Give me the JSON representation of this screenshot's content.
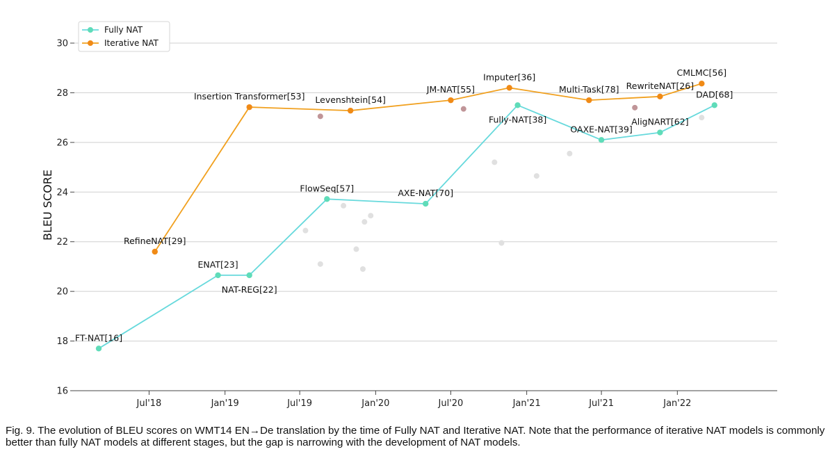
{
  "chart_data": {
    "type": "line",
    "xlabel": "",
    "ylabel": "BLEU SCORE",
    "ylim": [
      16,
      30.5
    ],
    "xlim": [
      "2018-01-01",
      "2022-08-31"
    ],
    "y_ticks": [
      16,
      18,
      20,
      22,
      24,
      26,
      28,
      30
    ],
    "x_ticks": [
      {
        "date": "2018-07-01",
        "label": "Jul'18"
      },
      {
        "date": "2019-01-01",
        "label": "Jan'19"
      },
      {
        "date": "2019-07-01",
        "label": "Jul'19"
      },
      {
        "date": "2020-01-01",
        "label": "Jan'20"
      },
      {
        "date": "2020-07-01",
        "label": "Jul'20"
      },
      {
        "date": "2021-01-01",
        "label": "Jan'21"
      },
      {
        "date": "2021-07-01",
        "label": "Jul'21"
      },
      {
        "date": "2022-01-01",
        "label": "Jan'22"
      }
    ],
    "grid": "horizontal",
    "legend": {
      "position": "top-left"
    },
    "series": [
      {
        "name": "Fully NAT",
        "color": "#66d9dc",
        "marker_color": "#5fdcb9",
        "points": [
          {
            "x": "2018-03-01",
            "y": 17.7,
            "label": "FT-NAT[16]",
            "label_pos": "above"
          },
          {
            "x": "2018-12-15",
            "y": 20.65,
            "label": "ENAT[23]",
            "label_pos": "above"
          },
          {
            "x": "2019-03-01",
            "y": 20.65,
            "label": "NAT-REG[22]",
            "label_pos": "below"
          },
          {
            "x": "2019-09-05",
            "y": 23.72,
            "label": "FlowSeq[57]",
            "label_pos": "above"
          },
          {
            "x": "2020-05-01",
            "y": 23.53,
            "label": "AXE-NAT[70]",
            "label_pos": "above"
          },
          {
            "x": "2020-12-10",
            "y": 27.5,
            "label": "Fully-NAT[38]",
            "label_pos": "below"
          },
          {
            "x": "2021-07-01",
            "y": 26.1,
            "label": "OAXE-NAT[39]",
            "label_pos": "above"
          },
          {
            "x": "2021-11-20",
            "y": 26.4,
            "label": "AligNART[62]",
            "label_pos": "above"
          },
          {
            "x": "2022-04-01",
            "y": 27.5,
            "label": "DAD[68]",
            "label_pos": "above"
          }
        ]
      },
      {
        "name": "Iterative NAT",
        "color": "#f1a01e",
        "marker_color": "#f08a16",
        "points": [
          {
            "x": "2018-07-15",
            "y": 21.6,
            "label": "RefineNAT[29]",
            "label_pos": "above"
          },
          {
            "x": "2019-03-01",
            "y": 27.42,
            "label": "Insertion Transformer[53]",
            "label_pos": "above"
          },
          {
            "x": "2019-11-01",
            "y": 27.28,
            "label": "Levenshtein[54]",
            "label_pos": "above"
          },
          {
            "x": "2020-07-01",
            "y": 27.7,
            "label": "JM-NAT[55]",
            "label_pos": "above"
          },
          {
            "x": "2020-11-20",
            "y": 28.2,
            "label": "Imputer[36]",
            "label_pos": "above"
          },
          {
            "x": "2021-06-01",
            "y": 27.7,
            "label": "Multi-Task[78]",
            "label_pos": "above"
          },
          {
            "x": "2021-11-20",
            "y": 27.85,
            "label": "RewriteNAT[26]",
            "label_pos": "above"
          },
          {
            "x": "2022-03-01",
            "y": 28.37,
            "label": "CMLMC[56]",
            "label_pos": "above"
          }
        ]
      }
    ],
    "background_points": [
      {
        "x": "2019-07-15",
        "y": 22.45,
        "color": "#e0e0e0"
      },
      {
        "x": "2019-08-20",
        "y": 21.1,
        "color": "#e0e0e0"
      },
      {
        "x": "2019-10-15",
        "y": 23.45,
        "color": "#e0e0e0"
      },
      {
        "x": "2019-11-15",
        "y": 21.7,
        "color": "#e0e0e0"
      },
      {
        "x": "2019-12-01",
        "y": 20.9,
        "color": "#e0e0e0"
      },
      {
        "x": "2019-12-05",
        "y": 22.8,
        "color": "#e0e0e0"
      },
      {
        "x": "2019-12-20",
        "y": 23.05,
        "color": "#e0e0e0"
      },
      {
        "x": "2020-10-15",
        "y": 25.2,
        "color": "#e0e0e0"
      },
      {
        "x": "2020-11-01",
        "y": 21.95,
        "color": "#e0e0e0"
      },
      {
        "x": "2021-01-25",
        "y": 24.65,
        "color": "#e0e0e0"
      },
      {
        "x": "2021-04-15",
        "y": 25.55,
        "color": "#e0e0e0"
      },
      {
        "x": "2022-03-01",
        "y": 27.0,
        "color": "#e0e0e0"
      },
      {
        "x": "2019-08-20",
        "y": 27.05,
        "color": "#c09598"
      },
      {
        "x": "2020-08-01",
        "y": 27.35,
        "color": "#c09598"
      },
      {
        "x": "2021-09-20",
        "y": 27.4,
        "color": "#c09598"
      }
    ]
  },
  "caption": "Fig. 9. The evolution of BLEU scores on WMT14 EN→De translation by the time of Fully NAT and Iterative NAT. Note that the performance of iterative NAT models is commonly better than fully NAT models at different stages, but the gap is narrowing with the development of NAT models."
}
